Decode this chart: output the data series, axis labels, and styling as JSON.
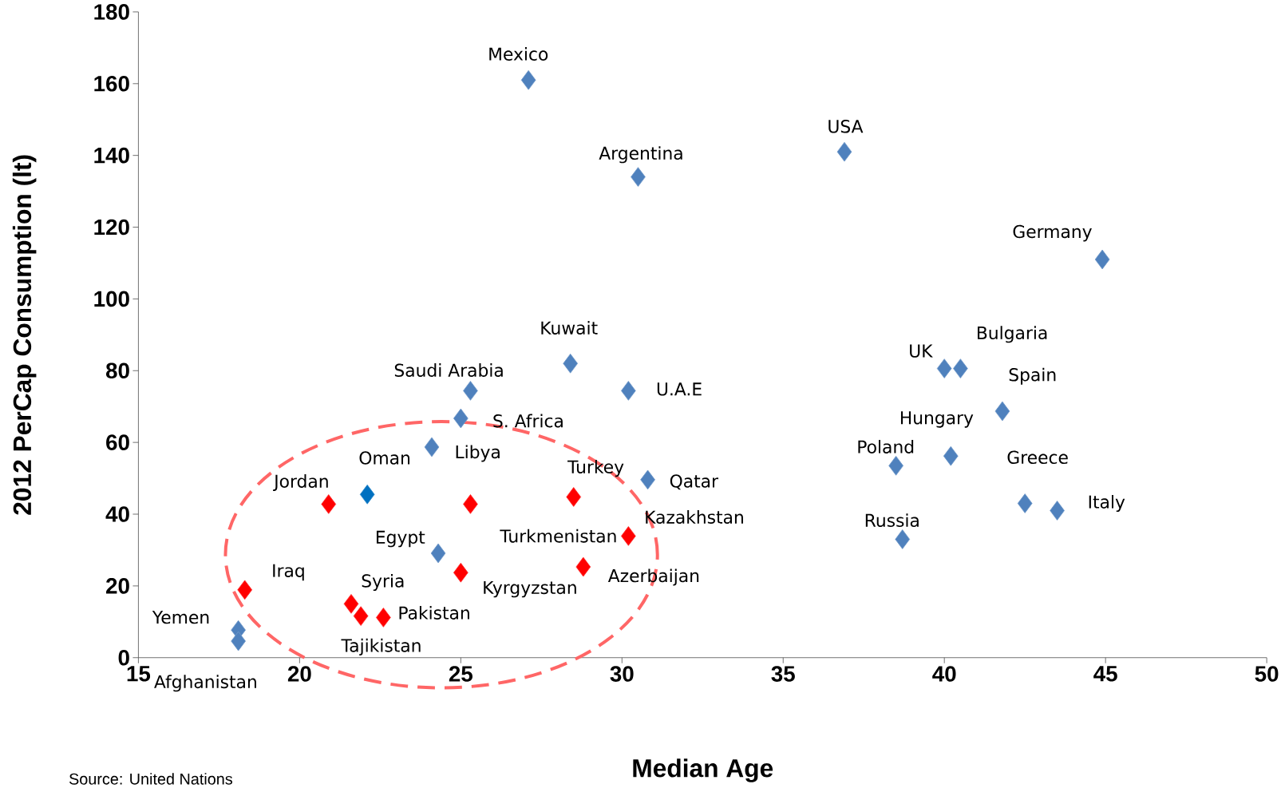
{
  "chart_data": {
    "type": "scatter",
    "xlabel": "Median Age",
    "ylabel": "2012 PerCap Consumption (lt)",
    "xlim": [
      15,
      50
    ],
    "ylim": [
      0,
      180
    ],
    "xticks": [
      15,
      20,
      25,
      30,
      35,
      40,
      45,
      50
    ],
    "yticks": [
      0,
      20,
      40,
      60,
      80,
      100,
      120,
      140,
      160,
      180
    ],
    "marker": "diamond",
    "series": [
      {
        "color": "#4f81bd",
        "x": [
          27.1,
          36.9,
          30.5,
          44.9,
          28.4,
          40.0,
          40.5,
          25.3,
          30.2,
          41.8,
          25.0,
          24.1,
          40.2,
          38.5,
          30.8,
          42.5,
          43.5,
          38.7,
          24.3,
          18.1,
          18.1
        ],
        "values": [
          161,
          141,
          134,
          111,
          82,
          80.6,
          80.6,
          74.4,
          74.4,
          68.7,
          66.7,
          58.7,
          56.2,
          53.5,
          49.6,
          43.0,
          41.0,
          33.0,
          29.1,
          7.7,
          4.6
        ]
      },
      {
        "color": "#0070c0",
        "x": [
          22.1
        ],
        "values": [
          45.5
        ]
      },
      {
        "color": "#ff0000",
        "x": [
          28.5,
          20.9,
          25.3,
          30.2,
          28.8,
          25.0,
          18.3,
          21.6,
          21.9,
          22.6
        ],
        "values": [
          44.8,
          42.8,
          42.8,
          33.9,
          25.3,
          23.7,
          18.9,
          15.0,
          11.6,
          11.2
        ]
      }
    ],
    "annotations": [
      {
        "text": "Mexico",
        "x": 27.1,
        "y": 161
      },
      {
        "text": "USA",
        "x": 36.9,
        "y": 141
      },
      {
        "text": "Argentina",
        "x": 30.5,
        "y": 134
      },
      {
        "text": "Germany",
        "x": 44.9,
        "y": 111
      },
      {
        "text": "Kuwait",
        "x": 28.4,
        "y": 82
      },
      {
        "text": "UK",
        "x": 40.0,
        "y": 80.6
      },
      {
        "text": "Bulgaria",
        "x": 40.5,
        "y": 80.6
      },
      {
        "text": "Saudi Arabia",
        "x": 25.3,
        "y": 74.4
      },
      {
        "text": "U.A.E",
        "x": 30.2,
        "y": 74.4
      },
      {
        "text": "Spain",
        "x": 41.8,
        "y": 68.7
      },
      {
        "text": "S. Africa",
        "x": 25.0,
        "y": 66.7
      },
      {
        "text": "Libya",
        "x": 24.1,
        "y": 58.7
      },
      {
        "text": "Hungary",
        "x": 40.2,
        "y": 56.2
      },
      {
        "text": "Poland",
        "x": 38.5,
        "y": 53.5
      },
      {
        "text": "Qatar",
        "x": 30.8,
        "y": 49.6
      },
      {
        "text": "Oman",
        "x": 22.1,
        "y": 45.5
      },
      {
        "text": "Turkey",
        "x": 28.5,
        "y": 44.8
      },
      {
        "text": "Jordan",
        "x": 20.9,
        "y": 42.8
      },
      {
        "text": "Greece",
        "x": 42.5,
        "y": 43.0
      },
      {
        "text": "Italy",
        "x": 43.5,
        "y": 41.0
      },
      {
        "text": "Kazakhstan",
        "x": 30.2,
        "y": 33.9
      },
      {
        "text": "Turkmenistan",
        "x": 25.3,
        "y": 42.8
      },
      {
        "text": "Russia",
        "x": 38.7,
        "y": 33.0
      },
      {
        "text": "Egypt",
        "x": 24.3,
        "y": 29.1
      },
      {
        "text": "Azerbaijan",
        "x": 28.8,
        "y": 25.3
      },
      {
        "text": "Kyrgyzstan",
        "x": 25.0,
        "y": 23.7
      },
      {
        "text": "Iraq",
        "x": 18.3,
        "y": 18.9
      },
      {
        "text": "Syria",
        "x": 21.6,
        "y": 15.0
      },
      {
        "text": "Pakistan",
        "x": 22.6,
        "y": 11.2
      },
      {
        "text": "Tajikistan",
        "x": 21.9,
        "y": 11.6
      },
      {
        "text": "Yemen",
        "x": 18.1,
        "y": 7.7
      },
      {
        "text": "Afghanistan",
        "x": 18.1,
        "y": 4.6
      },
      "Source: United Nations"
    ]
  }
}
